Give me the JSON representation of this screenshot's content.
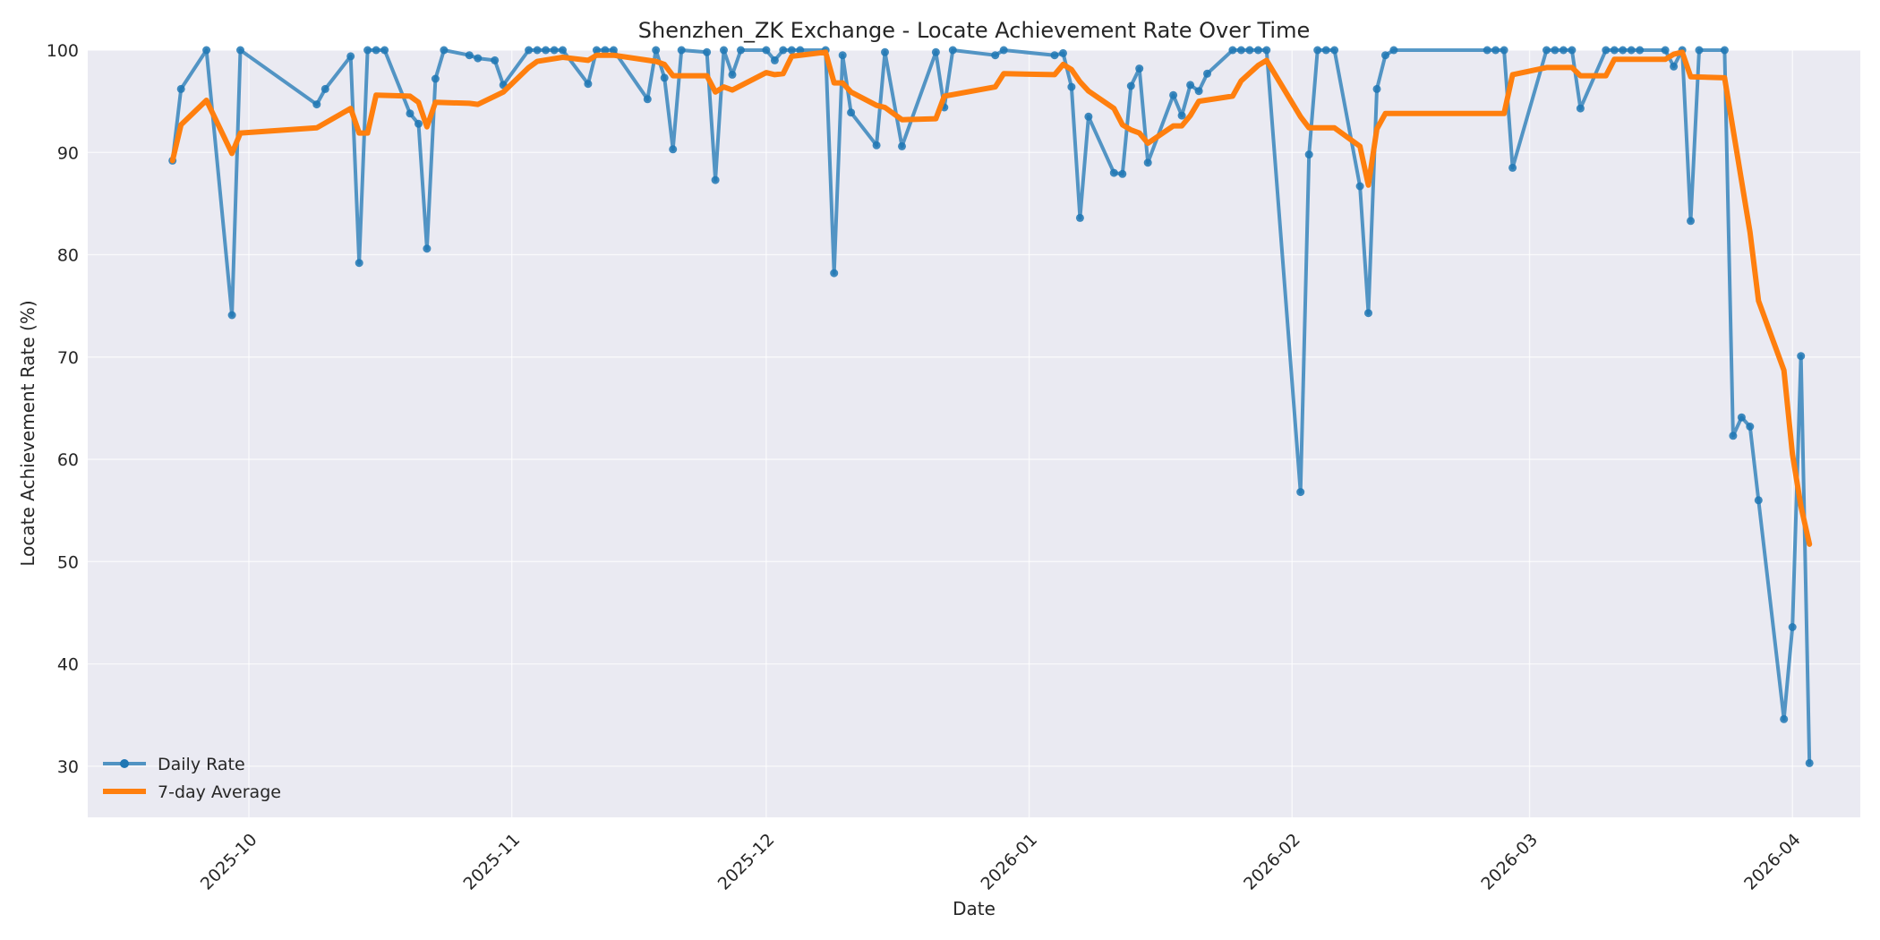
{
  "chart_data": {
    "type": "line",
    "title": "Shenzhen_ZK Exchange - Locate Achievement Rate Over Time",
    "xlabel": "Date",
    "ylabel": "Locate Achievement Rate (%)",
    "x_type": "date",
    "xlim": [
      "2025-09-12",
      "2026-04-09"
    ],
    "ylim": [
      25,
      100
    ],
    "x_ticks": [
      "2025-10-01",
      "2025-11-01",
      "2025-12-01",
      "2026-01-01",
      "2026-02-01",
      "2026-03-01",
      "2026-04-01"
    ],
    "x_tick_labels": [
      "2025-10",
      "2025-11",
      "2025-12",
      "2026-01",
      "2026-02",
      "2026-03",
      "2026-04"
    ],
    "y_ticks": [
      30,
      40,
      50,
      60,
      70,
      80,
      90,
      100
    ],
    "grid": true,
    "legend_position": "lower-left",
    "colors": {
      "plot_background": "#eaeaf2",
      "daily": "#1f77b4",
      "average": "#ff7f0e"
    },
    "series": [
      {
        "name": "Daily Rate",
        "marker": "circle",
        "points": [
          [
            "2025-09-22",
            89.2
          ],
          [
            "2025-09-23",
            96.2
          ],
          [
            "2025-09-26",
            100
          ],
          [
            "2025-09-29",
            74.1
          ],
          [
            "2025-09-30",
            100
          ],
          [
            "2025-10-09",
            94.7
          ],
          [
            "2025-10-10",
            96.2
          ],
          [
            "2025-10-13",
            99.4
          ],
          [
            "2025-10-14",
            79.2
          ],
          [
            "2025-10-15",
            100
          ],
          [
            "2025-10-16",
            100
          ],
          [
            "2025-10-17",
            100
          ],
          [
            "2025-10-20",
            93.8
          ],
          [
            "2025-10-21",
            92.8
          ],
          [
            "2025-10-22",
            80.6
          ],
          [
            "2025-10-23",
            97.2
          ],
          [
            "2025-10-24",
            100
          ],
          [
            "2025-10-27",
            99.5
          ],
          [
            "2025-10-28",
            99.2
          ],
          [
            "2025-10-30",
            99
          ],
          [
            "2025-10-31",
            96.6
          ],
          [
            "2025-11-03",
            100
          ],
          [
            "2025-11-04",
            100
          ],
          [
            "2025-11-05",
            100
          ],
          [
            "2025-11-06",
            100
          ],
          [
            "2025-11-07",
            100
          ],
          [
            "2025-11-10",
            96.7
          ],
          [
            "2025-11-11",
            100
          ],
          [
            "2025-11-12",
            100
          ],
          [
            "2025-11-13",
            100
          ],
          [
            "2025-11-17",
            95.2
          ],
          [
            "2025-11-18",
            100
          ],
          [
            "2025-11-19",
            97.3
          ],
          [
            "2025-11-20",
            90.3
          ],
          [
            "2025-11-21",
            100
          ],
          [
            "2025-11-24",
            99.8
          ],
          [
            "2025-11-25",
            87.3
          ],
          [
            "2025-11-26",
            100
          ],
          [
            "2025-11-27",
            97.6
          ],
          [
            "2025-11-28",
            100
          ],
          [
            "2025-12-01",
            100
          ],
          [
            "2025-12-02",
            99
          ],
          [
            "2025-12-03",
            100
          ],
          [
            "2025-12-04",
            100
          ],
          [
            "2025-12-05",
            100
          ],
          [
            "2025-12-08",
            100
          ],
          [
            "2025-12-09",
            78.2
          ],
          [
            "2025-12-10",
            99.5
          ],
          [
            "2025-12-11",
            93.9
          ],
          [
            "2025-12-14",
            90.7
          ],
          [
            "2025-12-15",
            99.8
          ],
          [
            "2025-12-17",
            90.6
          ],
          [
            "2025-12-21",
            99.8
          ],
          [
            "2025-12-22",
            94.4
          ],
          [
            "2025-12-23",
            100
          ],
          [
            "2025-12-28",
            99.5
          ],
          [
            "2025-12-29",
            100
          ],
          [
            "2026-01-04",
            99.5
          ],
          [
            "2026-01-05",
            99.7
          ],
          [
            "2026-01-06",
            96.4
          ],
          [
            "2026-01-07",
            83.6
          ],
          [
            "2026-01-08",
            93.5
          ],
          [
            "2026-01-11",
            88
          ],
          [
            "2026-01-12",
            87.9
          ],
          [
            "2026-01-13",
            96.5
          ],
          [
            "2026-01-14",
            98.2
          ],
          [
            "2026-01-15",
            89
          ],
          [
            "2026-01-18",
            95.6
          ],
          [
            "2026-01-19",
            93.6
          ],
          [
            "2026-01-20",
            96.6
          ],
          [
            "2026-01-21",
            96
          ],
          [
            "2026-01-22",
            97.7
          ],
          [
            "2026-01-25",
            100
          ],
          [
            "2026-01-26",
            100
          ],
          [
            "2026-01-27",
            100
          ],
          [
            "2026-01-28",
            100
          ],
          [
            "2026-01-29",
            100
          ],
          [
            "2026-02-02",
            56.8
          ],
          [
            "2026-02-03",
            89.8
          ],
          [
            "2026-02-04",
            100
          ],
          [
            "2026-02-05",
            100
          ],
          [
            "2026-02-06",
            100
          ],
          [
            "2026-02-09",
            86.7
          ],
          [
            "2026-02-10",
            74.3
          ],
          [
            "2026-02-11",
            96.2
          ],
          [
            "2026-02-12",
            99.5
          ],
          [
            "2026-02-13",
            100
          ],
          [
            "2026-02-24",
            100
          ],
          [
            "2026-02-25",
            100
          ],
          [
            "2026-02-26",
            100
          ],
          [
            "2026-02-27",
            88.5
          ],
          [
            "2026-03-03",
            100
          ],
          [
            "2026-03-04",
            100
          ],
          [
            "2026-03-05",
            100
          ],
          [
            "2026-03-06",
            100
          ],
          [
            "2026-03-07",
            94.3
          ],
          [
            "2026-03-10",
            100
          ],
          [
            "2026-03-11",
            100
          ],
          [
            "2026-03-12",
            100
          ],
          [
            "2026-03-13",
            100
          ],
          [
            "2026-03-14",
            100
          ],
          [
            "2026-03-17",
            100
          ],
          [
            "2026-03-18",
            98.4
          ],
          [
            "2026-03-19",
            100
          ],
          [
            "2026-03-20",
            83.3
          ],
          [
            "2026-03-21",
            100
          ],
          [
            "2026-03-24",
            100
          ],
          [
            "2026-03-25",
            62.3
          ],
          [
            "2026-03-26",
            64.1
          ],
          [
            "2026-03-27",
            63.2
          ],
          [
            "2026-03-28",
            56
          ],
          [
            "2026-03-31",
            34.6
          ],
          [
            "2026-04-01",
            43.6
          ],
          [
            "2026-04-02",
            70.1
          ],
          [
            "2026-04-03",
            30.3
          ]
        ]
      },
      {
        "name": "7-day Average",
        "points": [
          [
            "2025-09-22",
            89.2
          ],
          [
            "2025-09-23",
            92.7
          ],
          [
            "2025-09-26",
            95.1
          ],
          [
            "2025-09-29",
            89.9
          ],
          [
            "2025-09-30",
            91.9
          ],
          [
            "2025-10-09",
            92.4
          ],
          [
            "2025-10-13",
            94.3
          ],
          [
            "2025-10-14",
            91.9
          ],
          [
            "2025-10-15",
            91.9
          ],
          [
            "2025-10-16",
            95.6
          ],
          [
            "2025-10-20",
            95.5
          ],
          [
            "2025-10-21",
            94.9
          ],
          [
            "2025-10-22",
            92.5
          ],
          [
            "2025-10-23",
            94.9
          ],
          [
            "2025-10-27",
            94.8
          ],
          [
            "2025-10-28",
            94.7
          ],
          [
            "2025-10-30",
            95.5
          ],
          [
            "2025-10-31",
            95.9
          ],
          [
            "2025-11-03",
            98.3
          ],
          [
            "2025-11-04",
            98.9
          ],
          [
            "2025-11-07",
            99.3
          ],
          [
            "2025-11-10",
            99
          ],
          [
            "2025-11-11",
            99.5
          ],
          [
            "2025-11-13",
            99.5
          ],
          [
            "2025-11-18",
            98.9
          ],
          [
            "2025-11-19",
            98.6
          ],
          [
            "2025-11-20",
            97.5
          ],
          [
            "2025-11-24",
            97.5
          ],
          [
            "2025-11-25",
            95.9
          ],
          [
            "2025-11-26",
            96.4
          ],
          [
            "2025-11-27",
            96.1
          ],
          [
            "2025-12-01",
            97.8
          ],
          [
            "2025-12-02",
            97.6
          ],
          [
            "2025-12-03",
            97.7
          ],
          [
            "2025-12-04",
            99.4
          ],
          [
            "2025-12-08",
            99.8
          ],
          [
            "2025-12-09",
            96.8
          ],
          [
            "2025-12-10",
            96.8
          ],
          [
            "2025-12-11",
            95.9
          ],
          [
            "2025-12-14",
            94.6
          ],
          [
            "2025-12-15",
            94.4
          ],
          [
            "2025-12-17",
            93.2
          ],
          [
            "2025-12-21",
            93.3
          ],
          [
            "2025-12-22",
            95.5
          ],
          [
            "2025-12-28",
            96.4
          ],
          [
            "2025-12-29",
            97.7
          ],
          [
            "2026-01-04",
            97.6
          ],
          [
            "2026-01-05",
            98.6
          ],
          [
            "2026-01-06",
            98.1
          ],
          [
            "2026-01-07",
            96.9
          ],
          [
            "2026-01-08",
            96
          ],
          [
            "2026-01-11",
            94.3
          ],
          [
            "2026-01-12",
            92.7
          ],
          [
            "2026-01-13",
            92.2
          ],
          [
            "2026-01-14",
            91.9
          ],
          [
            "2026-01-15",
            90.9
          ],
          [
            "2026-01-18",
            92.6
          ],
          [
            "2026-01-19",
            92.6
          ],
          [
            "2026-01-20",
            93.6
          ],
          [
            "2026-01-21",
            95
          ],
          [
            "2026-01-25",
            95.5
          ],
          [
            "2026-01-26",
            97
          ],
          [
            "2026-01-28",
            98.5
          ],
          [
            "2026-01-29",
            99
          ],
          [
            "2026-02-02",
            93.5
          ],
          [
            "2026-02-03",
            92.4
          ],
          [
            "2026-02-06",
            92.4
          ],
          [
            "2026-02-09",
            90.6
          ],
          [
            "2026-02-10",
            86.8
          ],
          [
            "2026-02-11",
            92.3
          ],
          [
            "2026-02-12",
            93.8
          ],
          [
            "2026-02-26",
            93.8
          ],
          [
            "2026-02-27",
            97.6
          ],
          [
            "2026-03-03",
            98.3
          ],
          [
            "2026-03-06",
            98.3
          ],
          [
            "2026-03-07",
            97.5
          ],
          [
            "2026-03-10",
            97.5
          ],
          [
            "2026-03-11",
            99.1
          ],
          [
            "2026-03-17",
            99.1
          ],
          [
            "2026-03-18",
            99.6
          ],
          [
            "2026-03-19",
            99.8
          ],
          [
            "2026-03-20",
            97.4
          ],
          [
            "2026-03-24",
            97.3
          ],
          [
            "2026-03-27",
            82.2
          ],
          [
            "2026-03-28",
            75.5
          ],
          [
            "2026-03-31",
            68.7
          ],
          [
            "2026-04-01",
            60.5
          ],
          [
            "2026-04-02",
            55.4
          ],
          [
            "2026-04-03",
            51.7
          ]
        ]
      }
    ]
  }
}
